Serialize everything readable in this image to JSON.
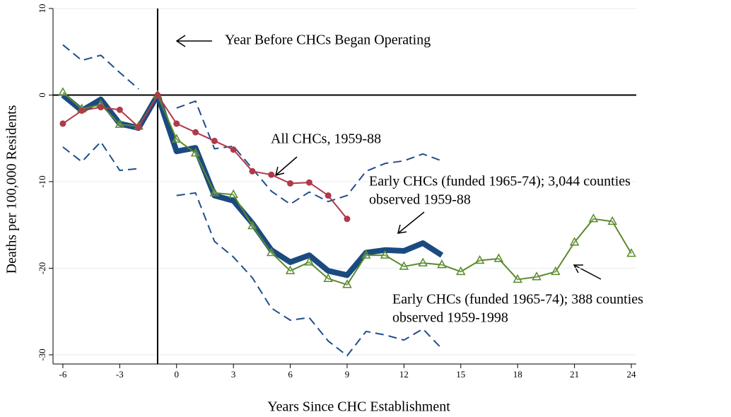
{
  "chart_data": {
    "type": "line",
    "xlabel": "Years Since CHC Establishment",
    "ylabel": "Deaths per 100,000 Residents",
    "xlim": [
      -6.52,
      24.26
    ],
    "ylim": [
      -31.06,
      10
    ],
    "xticks": [
      -6,
      -3,
      0,
      3,
      6,
      9,
      12,
      15,
      18,
      21,
      24
    ],
    "yticks": [
      -30,
      -20,
      -10,
      0,
      10
    ],
    "grid": true,
    "vline": -1,
    "hline": 0,
    "series": [
      {
        "color": "#1f4e8c",
        "style": "dashed",
        "width": 2,
        "x": [
          -6,
          -5,
          -4,
          -3,
          -2,
          -1,
          0,
          1,
          2,
          3,
          4,
          5,
          6,
          7,
          8,
          9,
          10,
          11,
          12,
          13,
          14
        ],
        "values": [
          5.8,
          4.0,
          4.6,
          2.6,
          0.7,
          null,
          -1.5,
          -0.7,
          -6.2,
          -5.9,
          -8.5,
          -11.1,
          -12.6,
          -11.2,
          -12.3,
          -11.6,
          -8.8,
          -7.9,
          -7.6,
          -6.8,
          -7.6
        ]
      },
      {
        "color": "#1f4e8c",
        "style": "dashed",
        "width": 2,
        "x": [
          -6,
          -5,
          -4,
          -3,
          -2,
          -1,
          0,
          1,
          2,
          3,
          4,
          5,
          6,
          7,
          8,
          9,
          10,
          11,
          12,
          13,
          14
        ],
        "values": [
          -6.0,
          -7.7,
          -5.4,
          -8.7,
          -8.5,
          null,
          -11.6,
          -11.3,
          -16.9,
          -18.7,
          -21.1,
          -24.6,
          -26.0,
          -25.7,
          -28.4,
          -30.1,
          -27.3,
          -27.7,
          -28.3,
          -27.0,
          -29.3
        ]
      },
      {
        "color": "#1b4a80",
        "style": "solid",
        "width": 8,
        "x": [
          -6,
          -5,
          -4,
          -3,
          -2,
          -1,
          0,
          1,
          2,
          3,
          4,
          5,
          6,
          7,
          8,
          9,
          10,
          11,
          12,
          13,
          14
        ],
        "values": [
          0,
          -1.8,
          -0.5,
          -3.3,
          -3.8,
          0,
          -6.5,
          -6.1,
          -11.6,
          -12.2,
          -14.8,
          -17.9,
          -19.3,
          -18.5,
          -20.3,
          -20.8,
          -18.2,
          -17.9,
          -18.0,
          -17.1,
          -18.5
        ]
      },
      {
        "color": "#5a8a2a",
        "style": "solid",
        "width": 2,
        "marker": "triangle",
        "x": [
          -6,
          -5,
          -4,
          -3,
          -2,
          -1,
          0,
          1,
          2,
          3,
          4,
          5,
          6,
          7,
          8,
          9,
          10,
          11,
          12,
          13,
          14,
          15,
          16,
          17,
          18,
          19,
          20,
          21,
          22,
          23,
          24
        ],
        "values": [
          0.3,
          -1.6,
          -1.1,
          -3.4,
          -3.6,
          0,
          -5.1,
          -6.7,
          -11.3,
          -11.5,
          -15.1,
          -18.2,
          -20.3,
          -19.3,
          -21.2,
          -21.9,
          -18.5,
          -18.5,
          -19.8,
          -19.4,
          -19.6,
          -20.4,
          -19.1,
          -18.9,
          -21.3,
          -21.0,
          -20.4,
          -17.0,
          -14.3,
          -14.6,
          -18.3
        ]
      },
      {
        "color": "#b03a48",
        "style": "solid",
        "width": 2,
        "marker": "circle",
        "x": [
          -6,
          -5,
          -4,
          -3,
          -2,
          -1,
          0,
          1,
          2,
          3,
          4,
          5,
          6,
          7,
          8,
          9
        ],
        "values": [
          -3.3,
          -1.8,
          -1.4,
          -1.7,
          -3.7,
          0,
          -3.3,
          -4.3,
          -5.3,
          -6.3,
          -8.8,
          -9.2,
          -10.2,
          -10.1,
          -11.6,
          -14.3
        ]
      }
    ],
    "annotations": [
      {
        "lines": [
          "Year Before CHCs Began Operating"
        ]
      },
      {
        "lines": [
          "All CHCs, 1959-88"
        ]
      },
      {
        "lines": [
          "Early CHCs (funded 1965-74); 3,044 counties",
          "observed 1959-88"
        ]
      },
      {
        "lines": [
          "Early CHCs (funded 1965-74); 388 counties",
          "observed 1959-1998"
        ]
      }
    ]
  }
}
